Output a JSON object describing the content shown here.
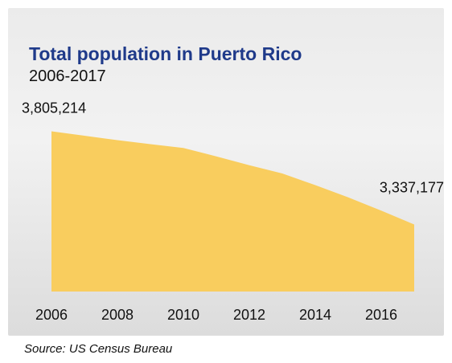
{
  "chart_data": {
    "type": "area",
    "title": "Total population in Puerto Rico",
    "subtitle": "2006-2017",
    "source": "Source: US Census Bureau",
    "x": [
      2006,
      2007,
      2008,
      2009,
      2010,
      2011,
      2012,
      2013,
      2014,
      2015,
      2016,
      2017
    ],
    "values": [
      3805214,
      3782995,
      3760866,
      3740410,
      3721525,
      3678732,
      3634488,
      3593077,
      3534874,
      3473177,
      3406520,
      3337177
    ],
    "xlim": [
      2006,
      2017
    ],
    "ylim": [
      3000000,
      3900000
    ],
    "xticks": [
      "2006",
      "2008",
      "2010",
      "2012",
      "2014",
      "2016"
    ],
    "data_labels": [
      {
        "x": 2006,
        "text": "3,805,214"
      },
      {
        "x": 2017,
        "text": "3,337,177"
      }
    ],
    "grid": false,
    "legend": "none",
    "fill_color": "#f9cd5e"
  }
}
